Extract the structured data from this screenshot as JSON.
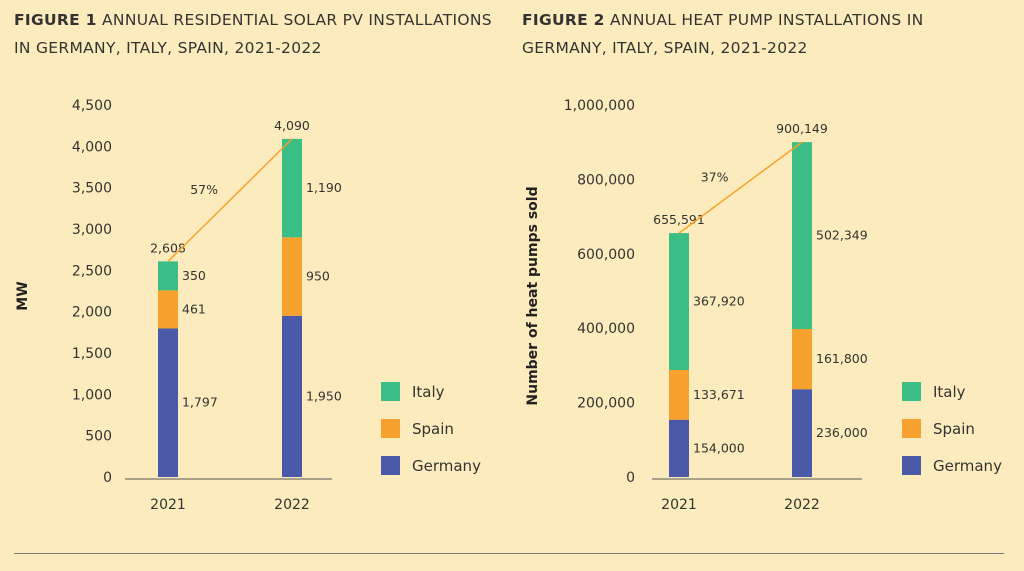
{
  "colors": {
    "Italy": "#3bbd86",
    "Spain": "#f7a12e",
    "Germany": "#4a5aa8",
    "growth_line": "#f7a12e",
    "background": "#fcecbd"
  },
  "chart_data": [
    {
      "type": "bar",
      "stacked": true,
      "title_prefix": "FIGURE 1",
      "title": "ANNUAL RESIDENTIAL SOLAR PV INSTALLATIONS IN GERMANY, ITALY, SPAIN, 2021-2022",
      "xlabel": "",
      "ylabel": "MW",
      "ylim": [
        0,
        4500
      ],
      "yticks": [
        0,
        500,
        1000,
        1500,
        2000,
        2500,
        3000,
        3500,
        4000,
        4500
      ],
      "ytick_labels": [
        "0",
        "500",
        "1,000",
        "1,500",
        "2,000",
        "2,500",
        "3,000",
        "3,500",
        "4,000",
        "4,500"
      ],
      "categories": [
        "2021",
        "2022"
      ],
      "series": [
        {
          "name": "Germany",
          "values": [
            1797,
            1950
          ],
          "labels": [
            "1,797",
            "1,950"
          ]
        },
        {
          "name": "Spain",
          "values": [
            461,
            950
          ],
          "labels": [
            "461",
            "950"
          ]
        },
        {
          "name": "Italy",
          "values": [
            350,
            1190
          ],
          "labels": [
            "350",
            "1,190"
          ]
        }
      ],
      "totals": [
        2608,
        4090
      ],
      "total_labels": [
        "2,608",
        "4,090"
      ],
      "growth_label": "57%",
      "legend": [
        "Italy",
        "Spain",
        "Germany"
      ],
      "legend_position": "right",
      "grid": false
    },
    {
      "type": "bar",
      "stacked": true,
      "title_prefix": "FIGURE 2",
      "title": "ANNUAL HEAT PUMP INSTALLATIONS IN GERMANY, ITALY, SPAIN, 2021-2022",
      "xlabel": "",
      "ylabel": "Number of heat pumps sold",
      "ylim": [
        0,
        1000000
      ],
      "yticks": [
        0,
        200000,
        400000,
        600000,
        800000,
        1000000
      ],
      "ytick_labels": [
        "0",
        "200,000",
        "400,000",
        "600,000",
        "800,000",
        "1,000,000"
      ],
      "categories": [
        "2021",
        "2022"
      ],
      "series": [
        {
          "name": "Germany",
          "values": [
            154000,
            236000
          ],
          "labels": [
            "154,000",
            "236,000"
          ]
        },
        {
          "name": "Spain",
          "values": [
            133671,
            161800
          ],
          "labels": [
            "133,671",
            "161,800"
          ]
        },
        {
          "name": "Italy",
          "values": [
            367920,
            502349
          ],
          "labels": [
            "367,920",
            "502,349"
          ]
        }
      ],
      "totals": [
        655591,
        900149
      ],
      "total_labels": [
        "655,591",
        "900,149"
      ],
      "growth_label": "37%",
      "legend": [
        "Italy",
        "Spain",
        "Germany"
      ],
      "legend_position": "right",
      "grid": false
    }
  ]
}
